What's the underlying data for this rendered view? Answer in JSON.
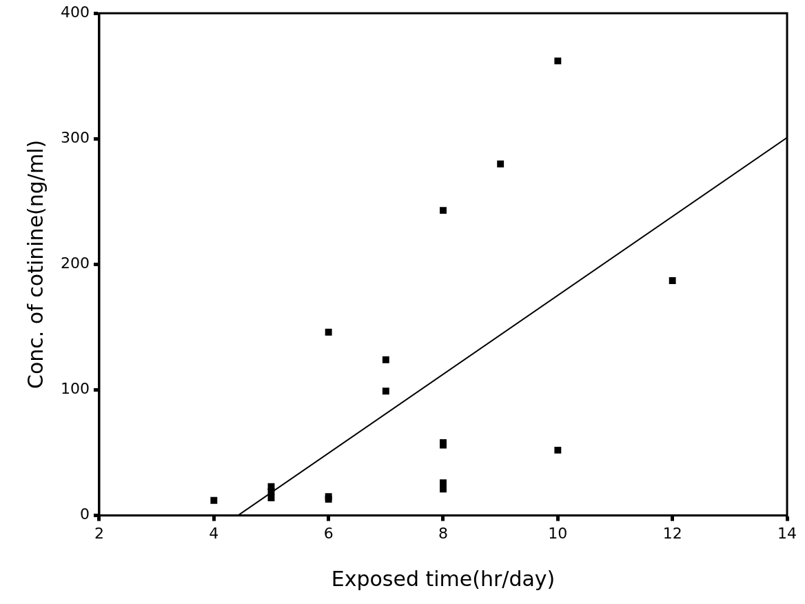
{
  "chart_data": {
    "type": "scatter",
    "x_label": "Exposed time(hr/day)",
    "y_label": "Conc. of cotinine(ng/ml)",
    "xlim": [
      2,
      14
    ],
    "xticks": [
      2,
      4,
      6,
      8,
      10,
      12,
      14
    ],
    "ylim": [
      0,
      400
    ],
    "yticks": [
      0,
      100,
      200,
      300,
      400
    ],
    "grid": false,
    "series": [
      {
        "type": "scatter",
        "marker": "square",
        "color": "#000000",
        "x": [
          4,
          5,
          5,
          5,
          6,
          6,
          6,
          7,
          7,
          8,
          8,
          8,
          8,
          8,
          9,
          10,
          10,
          12
        ],
        "values": [
          12,
          23,
          19,
          14,
          146,
          15,
          13,
          124,
          99,
          243,
          58,
          56,
          26,
          21,
          280,
          362,
          52,
          187
        ]
      },
      {
        "type": "line",
        "line_style": "solid",
        "color": "#000000",
        "x": [
          4.42,
          14
        ],
        "values": [
          0,
          301
        ]
      }
    ]
  }
}
